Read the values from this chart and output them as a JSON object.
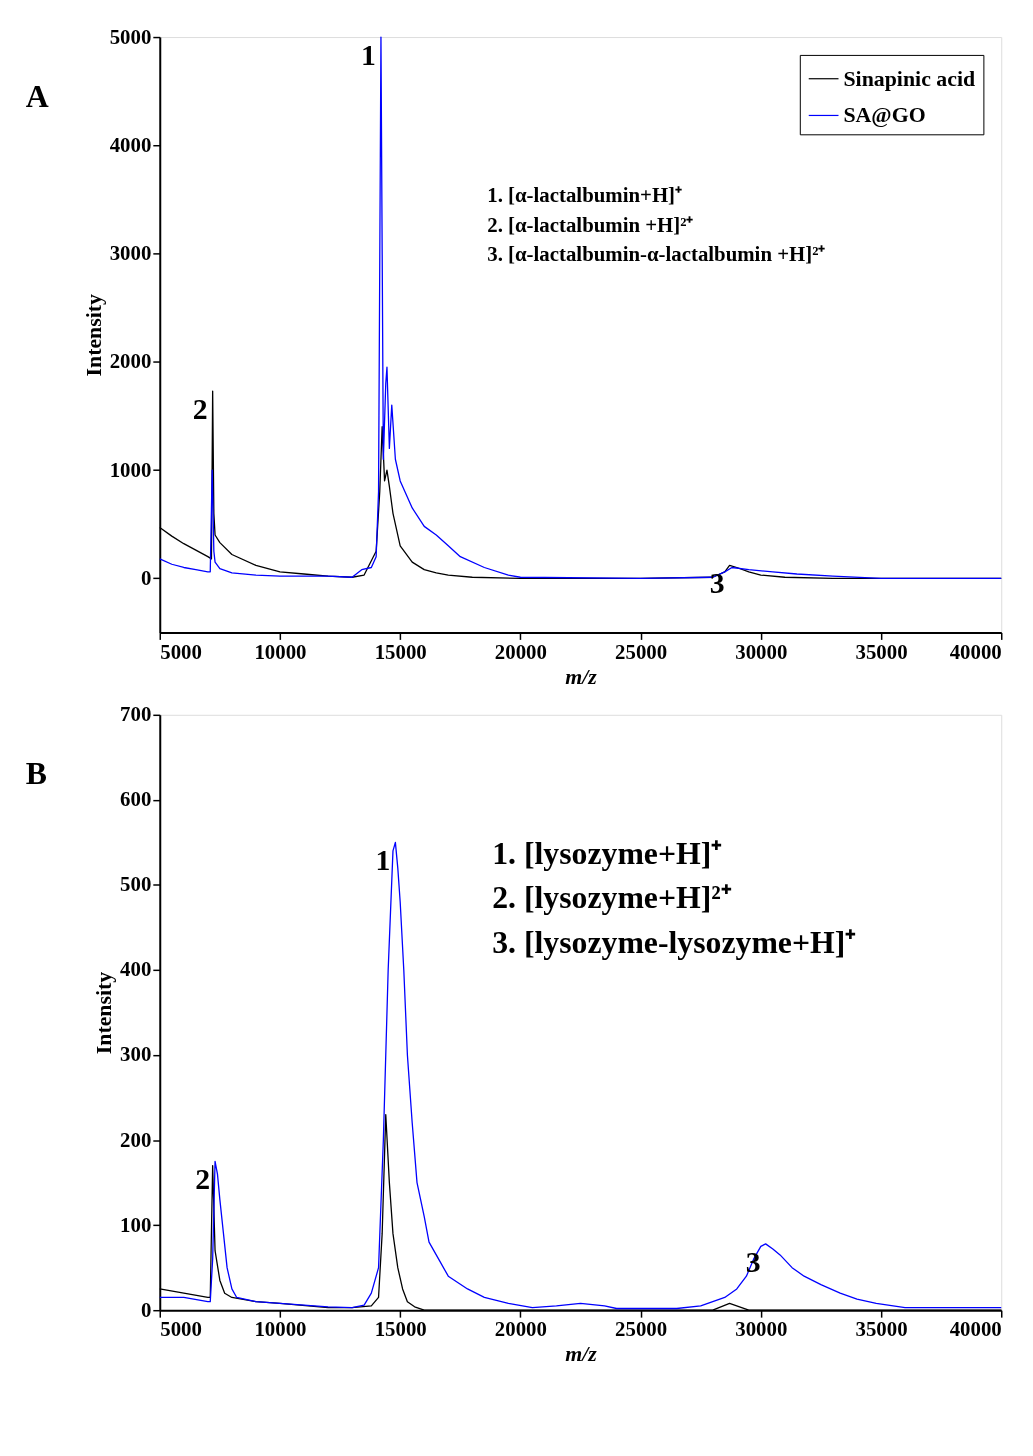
{
  "chart_data": [
    {
      "type": "line",
      "title": "A",
      "xlabel": "m/z",
      "ylabel": "Intensity",
      "xlim": [
        5000,
        40000
      ],
      "ylim": [
        -500,
        5000
      ],
      "xticks": [
        5000,
        10000,
        15000,
        20000,
        25000,
        30000,
        35000,
        40000
      ],
      "yticks": [
        0,
        1000,
        2000,
        3000,
        4000,
        5000
      ],
      "grid": false,
      "legend": "top right",
      "line_style": "solid",
      "marker": "none",
      "series": [
        {
          "name": "Sinapinic acid",
          "color": "#000000",
          "x": [
            5000,
            5500,
            6000,
            6500,
            7000,
            7150,
            7200,
            7250,
            7300,
            7500,
            8000,
            9000,
            10000,
            11000,
            12000,
            13000,
            13500,
            14000,
            14150,
            14250,
            14350,
            14450,
            14550,
            14700,
            15000,
            15500,
            16000,
            16500,
            17000,
            18000,
            20000,
            25000,
            28000,
            28500,
            28700,
            29000,
            29500,
            30000,
            31000,
            33000,
            40000
          ],
          "values": [
            470,
            390,
            320,
            260,
            200,
            180,
            1730,
            600,
            400,
            330,
            220,
            120,
            60,
            40,
            20,
            10,
            30,
            250,
            800,
            1400,
            900,
            1000,
            850,
            600,
            300,
            150,
            80,
            50,
            30,
            10,
            0,
            0,
            10,
            60,
            120,
            100,
            60,
            30,
            10,
            0,
            0
          ]
        },
        {
          "name": "SA@GO",
          "color": "#0000ff",
          "x": [
            5000,
            5500,
            6000,
            6500,
            7000,
            7100,
            7180,
            7250,
            7300,
            7500,
            8000,
            9000,
            10000,
            12000,
            13000,
            13400,
            13800,
            14000,
            14100,
            14200,
            14300,
            14400,
            14450,
            14550,
            14650,
            14800,
            15000,
            15500,
            16000,
            16500,
            17000,
            17500,
            18500,
            19500,
            20000,
            25000,
            28000,
            28500,
            28800,
            29500,
            30500,
            31500,
            33000,
            35000,
            40000
          ],
          "values": [
            180,
            130,
            100,
            80,
            60,
            60,
            1000,
            250,
            150,
            90,
            50,
            30,
            20,
            20,
            10,
            80,
            100,
            200,
            800,
            5000,
            1100,
            1800,
            1950,
            1200,
            1600,
            1100,
            900,
            650,
            480,
            400,
            300,
            200,
            100,
            30,
            10,
            0,
            10,
            60,
            100,
            80,
            60,
            40,
            20,
            0,
            0
          ]
        }
      ],
      "annotations": [
        {
          "text": "1",
          "x": 14200,
          "y": 5000
        },
        {
          "text": "2",
          "x": 7200,
          "y": 1730
        },
        {
          "text": "3",
          "x": 28700,
          "y": 120
        },
        "1.      [α-lactalbumin+H]⁺",
        "2.      [α-lactalbumin +H]²⁺",
        "3.      [α-lactalbumin-α-lactalbumin +H]²⁺"
      ]
    },
    {
      "type": "line",
      "title": "B",
      "xlabel": "m/z",
      "ylabel": "Intensity",
      "xlim": [
        5000,
        40000
      ],
      "ylim": [
        0,
        700
      ],
      "xticks": [
        5000,
        10000,
        15000,
        20000,
        25000,
        30000,
        35000,
        40000
      ],
      "yticks": [
        0,
        100,
        200,
        300,
        400,
        500,
        600,
        700
      ],
      "grid": false,
      "legend": "top right",
      "line_style": "solid",
      "marker": "none",
      "series": [
        {
          "name": "Sinapinic acid",
          "color": "#000000",
          "x": [
            5000,
            6000,
            7000,
            7100,
            7200,
            7300,
            7500,
            7700,
            8000,
            9000,
            10000,
            12000,
            13000,
            13800,
            14100,
            14250,
            14400,
            14550,
            14700,
            14900,
            15100,
            15300,
            15600,
            16000,
            20000,
            28000,
            28700,
            29500,
            40000
          ],
          "values": [
            25,
            20,
            15,
            15,
            170,
            70,
            35,
            20,
            15,
            10,
            8,
            3,
            3,
            5,
            15,
            90,
            230,
            150,
            90,
            50,
            25,
            10,
            4,
            0,
            0,
            0,
            8,
            0,
            0
          ]
        },
        {
          "name": "SA@GO",
          "color": "#0000ff",
          "x": [
            5000,
            6000,
            7000,
            7100,
            7200,
            7300,
            7400,
            7500,
            7650,
            7800,
            8000,
            8200,
            9000,
            10000,
            12000,
            13000,
            13500,
            13800,
            14100,
            14300,
            14500,
            14700,
            14800,
            14900,
            15000,
            15150,
            15300,
            15500,
            15700,
            16000,
            16200,
            16600,
            17000,
            17800,
            18500,
            19500,
            20500,
            21500,
            22500,
            23500,
            24000,
            26500,
            27500,
            28000,
            28500,
            29000,
            29400,
            29700,
            30000,
            30200,
            30500,
            30800,
            31300,
            31800,
            32500,
            33300,
            34000,
            34800,
            36000,
            38000,
            40000
          ],
          "values": [
            15,
            15,
            10,
            10,
            60,
            175,
            160,
            130,
            90,
            50,
            25,
            15,
            10,
            8,
            4,
            3,
            6,
            20,
            50,
            200,
            400,
            540,
            550,
            520,
            480,
            400,
            300,
            220,
            150,
            110,
            80,
            60,
            40,
            25,
            15,
            8,
            3,
            5,
            8,
            5,
            2,
            2,
            5,
            10,
            15,
            25,
            40,
            60,
            75,
            78,
            72,
            65,
            50,
            40,
            30,
            20,
            13,
            8,
            3,
            3,
            3
          ]
        }
      ],
      "annotations": [
        {
          "text": "1",
          "x": 14800,
          "y": 550
        },
        {
          "text": "2",
          "x": 7300,
          "y": 175
        },
        {
          "text": "3",
          "x": 30200,
          "y": 78
        },
        "1.   [lysozyme+H]⁺",
        "2.   [lysozyme+H]²⁺",
        "3.   [lysozyme-lysozyme+H]⁺"
      ]
    }
  ]
}
